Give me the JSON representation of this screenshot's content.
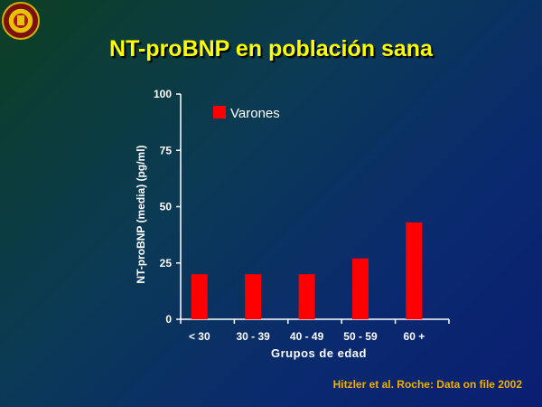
{
  "slide": {
    "title": "NT-proBNP en población sana",
    "source": "Hitzler et al. Roche: Data on file 2002"
  },
  "icons": {
    "logo": "university-seal-icon"
  },
  "colors": {
    "bar": "#ff0000",
    "title": "#ffff00",
    "source": "#f0b000",
    "axis": "#ffffff"
  },
  "chart_data": {
    "type": "bar",
    "categories": [
      "< 30",
      "30 - 39",
      "40 - 49",
      "50 - 59",
      "60 +"
    ],
    "series": [
      {
        "name": "Varones",
        "values": [
          20,
          20,
          20,
          27,
          43
        ]
      }
    ],
    "xlabel": "Grupos de edad",
    "ylabel": "NT-proBNP (media) (pg/ml)",
    "ylim": [
      0,
      100
    ],
    "yticks": [
      "0",
      "25",
      "50",
      "75",
      "100"
    ],
    "ytick_values": [
      0,
      25,
      50,
      75,
      100
    ],
    "legend": "top-left",
    "grid": false
  }
}
